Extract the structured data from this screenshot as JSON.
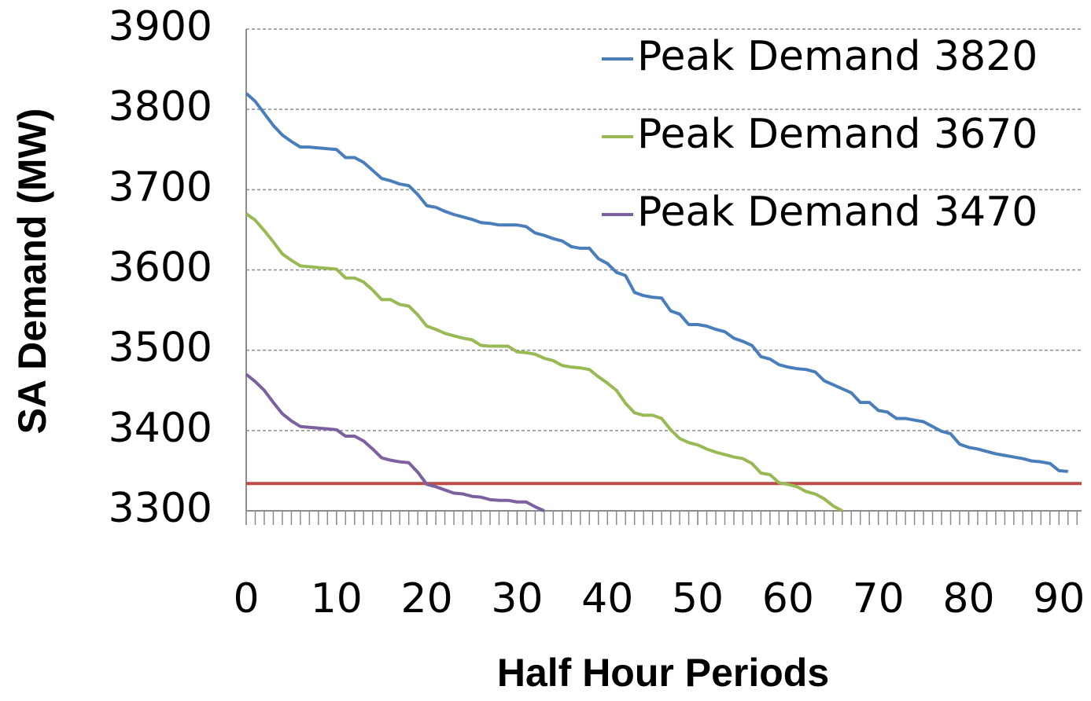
{
  "chart_data": {
    "type": "line",
    "xlabel": "Half Hour Periods",
    "ylabel": "SA Demand (MW)",
    "x": [
      0,
      1,
      2,
      3,
      4,
      5,
      6,
      7,
      8,
      9,
      10,
      11,
      12,
      13,
      14,
      15,
      16,
      17,
      18,
      19,
      20,
      21,
      22,
      23,
      24,
      25,
      26,
      27,
      28,
      29,
      30,
      31,
      32,
      33,
      34,
      35,
      36,
      37,
      38,
      39,
      40,
      41,
      42,
      43,
      44,
      45,
      46,
      47,
      48,
      49,
      50,
      51,
      52,
      53,
      54,
      55,
      56,
      57,
      58,
      59,
      60,
      61,
      62,
      63,
      64,
      65,
      66,
      67,
      68,
      69,
      70,
      71,
      72,
      73,
      74,
      75,
      76,
      77,
      78,
      79,
      80,
      81,
      82,
      83,
      84,
      85,
      86,
      87,
      88,
      89,
      90,
      91
    ],
    "series": [
      {
        "name": "Peak Demand 3820",
        "color": "#4a7ebb",
        "values": [
          3820,
          3810,
          3795,
          3780,
          3768,
          3760,
          3753,
          3753,
          3752,
          3751,
          3750,
          3740,
          3740,
          3734,
          3724,
          3714,
          3711,
          3707,
          3705,
          3694,
          3680,
          3678,
          3673,
          3669,
          3666,
          3663,
          3659,
          3658,
          3656,
          3656,
          3656,
          3654,
          3646,
          3643,
          3639,
          3636,
          3629,
          3627,
          3627,
          3614,
          3608,
          3597,
          3593,
          3572,
          3568,
          3566,
          3565,
          3549,
          3545,
          3532,
          3532,
          3530,
          3526,
          3523,
          3515,
          3511,
          3506,
          3492,
          3489,
          3482,
          3479,
          3477,
          3476,
          3473,
          3462,
          3457,
          3452,
          3447,
          3435,
          3435,
          3425,
          3423,
          3415,
          3415,
          3413,
          3411,
          3405,
          3399,
          3396,
          3383,
          3379,
          3377,
          3374,
          3371,
          3369,
          3367,
          3365,
          3362,
          3361,
          3359,
          3350,
          3349
        ]
      },
      {
        "name": "Peak Demand 3670",
        "color": "#98b954",
        "values": [
          3670,
          3662,
          3649,
          3635,
          3620,
          3612,
          3605,
          3604,
          3603,
          3602,
          3601,
          3590,
          3590,
          3585,
          3575,
          3563,
          3563,
          3557,
          3555,
          3544,
          3530,
          3526,
          3521,
          3518,
          3515,
          3513,
          3506,
          3505,
          3505,
          3505,
          3498,
          3497,
          3495,
          3490,
          3487,
          3481,
          3479,
          3478,
          3476,
          3467,
          3459,
          3450,
          3434,
          3422,
          3419,
          3419,
          3415,
          3401,
          3390,
          3385,
          3382,
          3377,
          3373,
          3370,
          3367,
          3365,
          3359,
          3347,
          3345,
          3335,
          3333,
          3330,
          3324,
          3321,
          3315,
          3306,
          3300,
          null,
          null,
          null,
          null,
          null,
          null,
          null,
          null,
          null,
          null,
          null,
          null,
          null,
          null,
          null,
          null,
          null,
          null,
          null,
          null,
          null,
          null,
          null,
          null,
          null
        ]
      },
      {
        "name": "Peak Demand 3470",
        "color": "#7d60a0",
        "values": [
          3470,
          3461,
          3450,
          3435,
          3421,
          3412,
          3405,
          3404,
          3403,
          3402,
          3401,
          3393,
          3393,
          3387,
          3377,
          3366,
          3363,
          3361,
          3360,
          3348,
          3333,
          3330,
          3326,
          3322,
          3321,
          3318,
          3317,
          3314,
          3313,
          3313,
          3311,
          3311,
          3305,
          3300,
          null,
          null,
          null,
          null,
          null,
          null,
          null,
          null,
          null,
          null,
          null,
          null,
          null,
          null,
          null,
          null,
          null,
          null,
          null,
          null,
          null,
          null,
          null,
          null,
          null,
          null,
          null,
          null,
          null,
          null,
          null,
          null,
          null,
          null,
          null,
          null,
          null,
          null,
          null,
          null,
          null,
          null,
          null,
          null,
          null,
          null,
          null,
          null,
          null,
          null,
          null,
          null,
          null,
          null,
          null,
          null,
          null,
          null
        ]
      }
    ],
    "reference_line": {
      "value": 3334,
      "color": "#be4b48"
    },
    "xlim": [
      0,
      92.5
    ],
    "xticks": [
      0,
      10,
      20,
      30,
      40,
      50,
      60,
      70,
      80,
      90
    ],
    "x_minor_step": 1,
    "ylim": [
      3300,
      3900
    ],
    "yticks": [
      3300,
      3400,
      3500,
      3600,
      3700,
      3800,
      3900
    ],
    "grid": true,
    "legend": "upper right"
  }
}
